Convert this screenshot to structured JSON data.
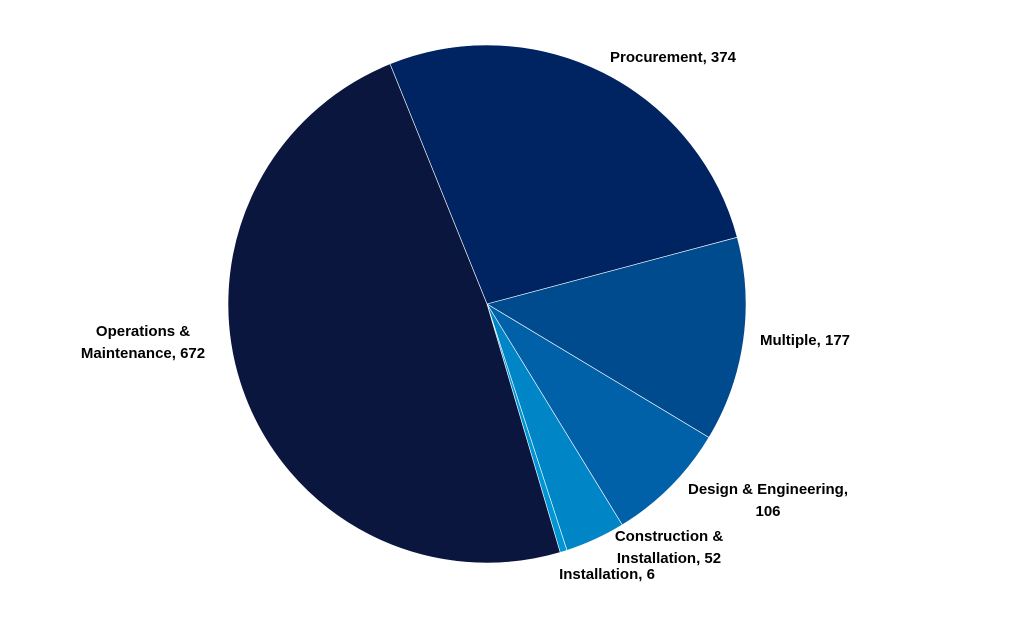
{
  "chart_data": {
    "type": "pie",
    "title": "",
    "slices": [
      {
        "label": "Procurement",
        "value": 374,
        "color": "#002462"
      },
      {
        "label": "Multiple",
        "value": 177,
        "color": "#004a8e"
      },
      {
        "label": "Design & Engineering",
        "value": 106,
        "color": "#0060a8"
      },
      {
        "label": "Construction & Installation",
        "value": 52,
        "color": "#0085c6"
      },
      {
        "label": "Installation",
        "value": 6,
        "color": "#0096d6"
      },
      {
        "label": "Operations & Maintenance",
        "value": 672,
        "color": "#0b163e"
      }
    ],
    "data_labels": [
      {
        "lines": [
          "Procurement, 374"
        ]
      },
      {
        "lines": [
          "Multiple, 177"
        ]
      },
      {
        "lines": [
          "Design & Engineering,",
          "106"
        ]
      },
      {
        "lines": [
          "Construction &",
          "Installation, 52"
        ]
      },
      {
        "lines": [
          "Installation, 6"
        ]
      },
      {
        "lines": [
          "Operations &",
          "Maintenance, 672"
        ]
      }
    ]
  }
}
